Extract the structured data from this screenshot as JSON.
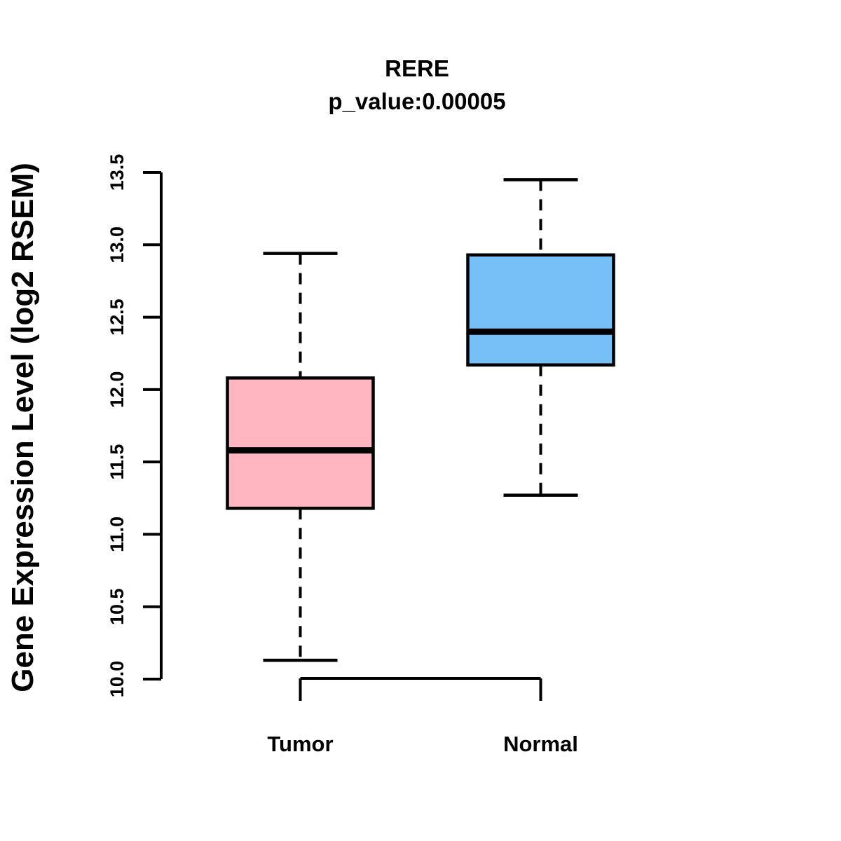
{
  "header": {
    "title": "RERE",
    "subtitle": "p_value:0.00005"
  },
  "y_axis": {
    "label": "Gene Expression Level (log2 RSEM)"
  },
  "chart_data": {
    "type": "boxplot",
    "title": "RERE",
    "subtitle": "p_value:0.00005",
    "xlabel": "",
    "ylabel": "Gene Expression Level (log2 RSEM)",
    "ylim": [
      10.0,
      13.5
    ],
    "yticks": [
      10.0,
      10.5,
      11.0,
      11.5,
      12.0,
      12.5,
      13.0,
      13.5
    ],
    "categories": [
      "Tumor",
      "Normal"
    ],
    "series": [
      {
        "name": "Tumor",
        "fill_color": "#FFB6C1",
        "whisker_low": 10.13,
        "q1": 11.18,
        "median": 11.58,
        "q3": 12.08,
        "whisker_high": 12.94
      },
      {
        "name": "Normal",
        "fill_color": "#76BFF7",
        "whisker_low": 11.27,
        "q1": 12.17,
        "median": 12.4,
        "q3": 12.93,
        "whisker_high": 13.45
      }
    ],
    "grid": false,
    "legend": "none",
    "line_color": "#000000",
    "whisker_style": "dashed"
  }
}
